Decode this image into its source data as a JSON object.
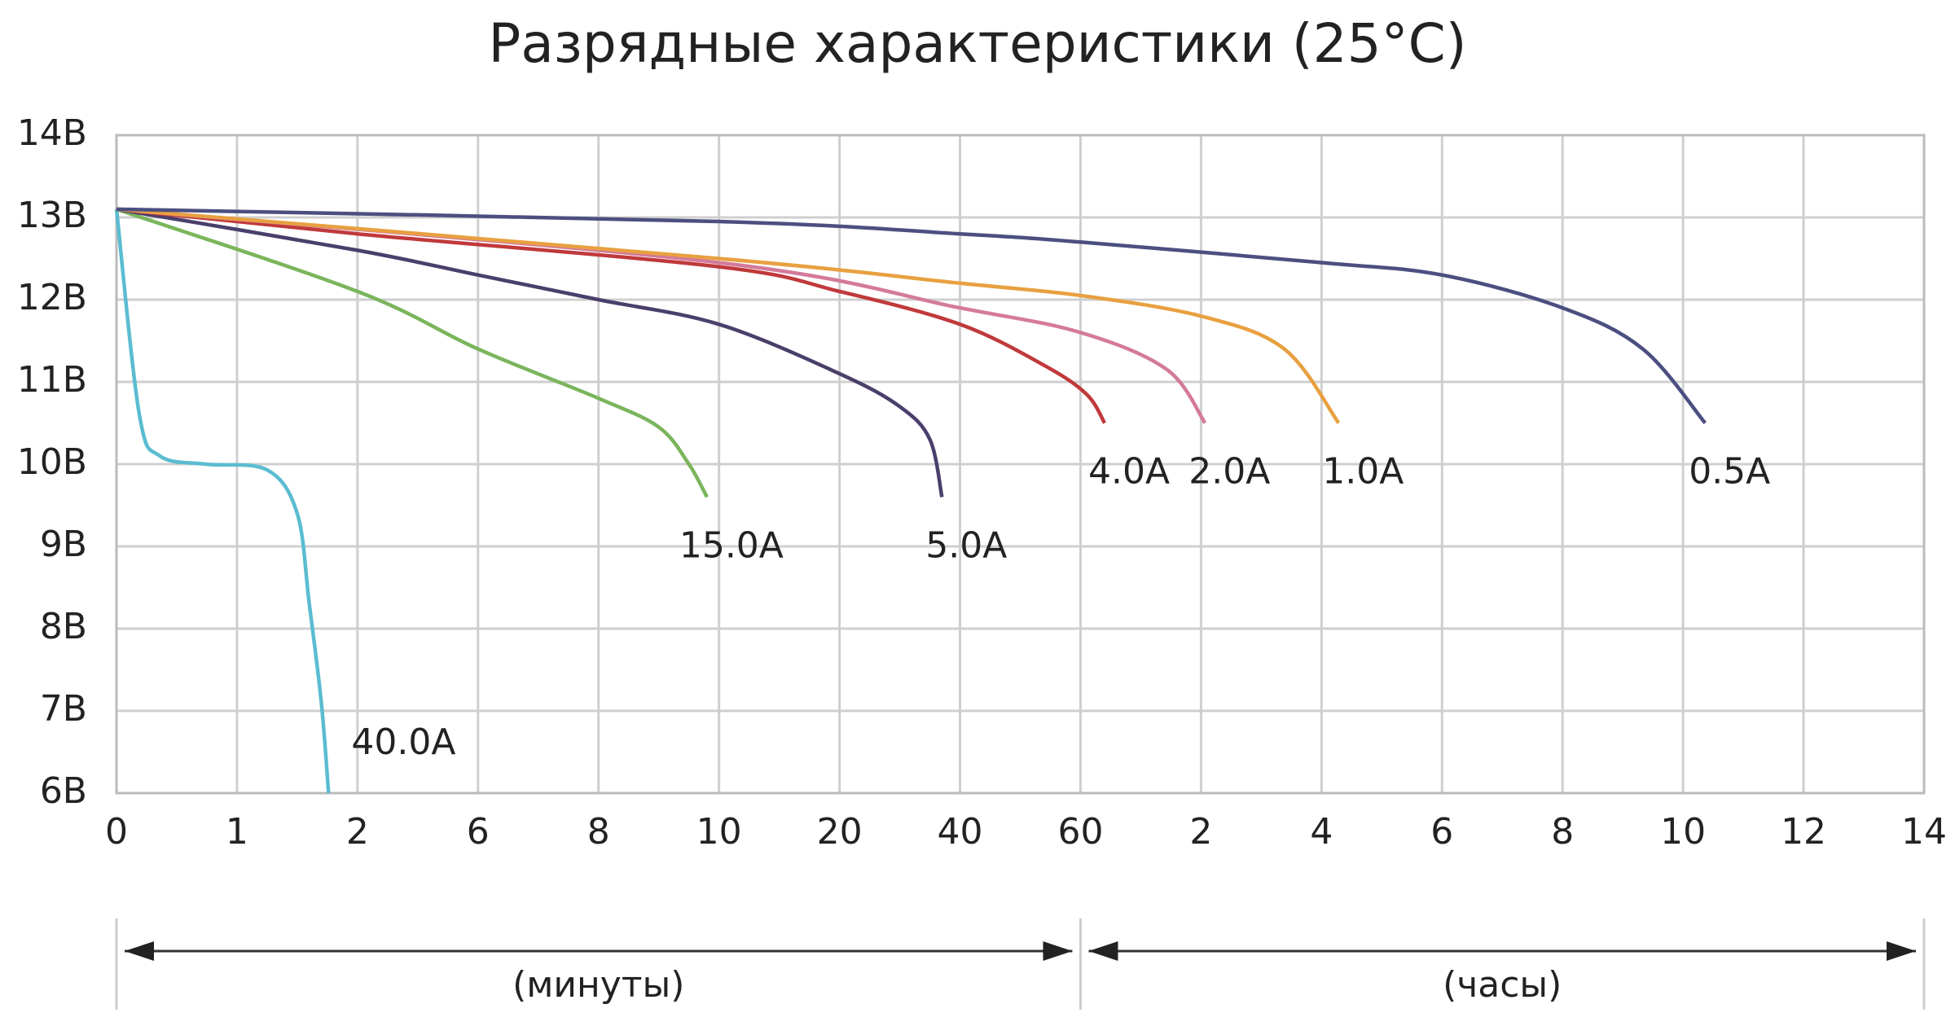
{
  "chart_data": {
    "type": "line",
    "title": "Разрядные характеристики (25°C)",
    "xlim": [
      0,
      840
    ],
    "xticks": [
      0,
      1,
      2,
      6,
      8,
      10,
      20,
      40,
      60,
      {
        "value": 120,
        "label": "2"
      },
      {
        "value": 240,
        "label": "4"
      },
      {
        "value": 360,
        "label": "6"
      },
      {
        "value": 480,
        "label": "8"
      },
      {
        "value": 600,
        "label": "10"
      },
      {
        "value": 720,
        "label": "12"
      },
      {
        "value": 840,
        "label": "14"
      }
    ],
    "ylim": [
      6,
      14
    ],
    "yticks": [
      {
        "value": 6,
        "label": "6В"
      },
      {
        "value": 7,
        "label": "7В"
      },
      {
        "value": 8,
        "label": "8В"
      },
      {
        "value": 9,
        "label": "9В"
      },
      {
        "value": 10,
        "label": "10В"
      },
      {
        "value": 11,
        "label": "11В"
      },
      {
        "value": 12,
        "label": "12В"
      },
      {
        "value": 13,
        "label": "13В"
      },
      {
        "value": 14,
        "label": "14В"
      }
    ],
    "grid": true,
    "annotations": [
      "(минуты)",
      "(часы)"
    ],
    "series": [
      {
        "name": "40.0A",
        "color": "#5bbcd0",
        "x": [
          0,
          0.19,
          0.36,
          0.74,
          1.25,
          1.5,
          1.6,
          1.7,
          1.76
        ],
        "values": [
          13.1,
          10.6,
          10.1,
          10.0,
          9.93,
          9.4,
          8.3,
          7.1,
          6.0
        ]
      },
      {
        "name": "15.0A",
        "color": "#7ab55c",
        "x": [
          0,
          2,
          6,
          8,
          9,
          9.5,
          9.8
        ],
        "values": [
          13.1,
          12.1,
          11.4,
          10.8,
          10.45,
          10.0,
          9.6
        ]
      },
      {
        "name": "5.0A",
        "color": "#4a3f6b",
        "x": [
          0,
          2,
          6,
          8,
          10,
          20,
          30,
          35,
          37
        ],
        "values": [
          13.1,
          12.6,
          12.3,
          12.0,
          11.7,
          11.1,
          10.7,
          10.3,
          9.6
        ]
      },
      {
        "name": "4.0A",
        "color": "#c0393b",
        "x": [
          0,
          2,
          10,
          20,
          40,
          54,
          63,
          72
        ],
        "values": [
          13.1,
          12.8,
          12.4,
          12.1,
          11.7,
          11.2,
          10.85,
          10.5
        ]
      },
      {
        "name": "2.0A",
        "color": "#d47a9a",
        "x": [
          0,
          10,
          40,
          60,
          103,
          124
        ],
        "values": [
          13.1,
          12.45,
          11.9,
          11.6,
          11.15,
          10.5
        ]
      },
      {
        "name": "1.0A",
        "color": "#e8a040",
        "x": [
          0,
          10,
          40,
          60,
          120,
          203,
          257
        ],
        "values": [
          13.1,
          12.5,
          12.2,
          12.05,
          11.8,
          11.4,
          10.5
        ]
      },
      {
        "name": "0.5A",
        "color": "#4b4f80",
        "x": [
          0,
          10,
          40,
          60,
          240,
          360,
          480,
          560,
          622
        ],
        "values": [
          13.1,
          12.95,
          12.8,
          12.7,
          12.45,
          12.3,
          11.9,
          11.4,
          10.5
        ]
      }
    ]
  }
}
